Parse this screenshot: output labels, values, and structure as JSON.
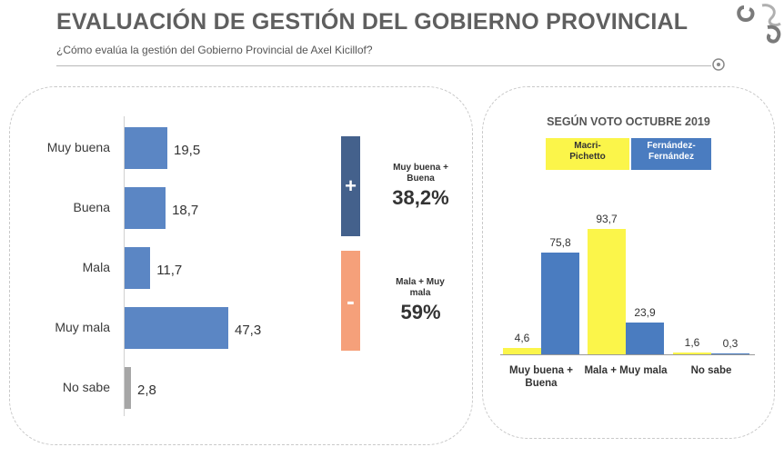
{
  "header": {
    "title": "EVALUACIÓN DE GESTIÓN DEL GOBIERNO PROVINCIAL",
    "subtitle": "¿Cómo evalúa la gestión del Gobierno Provincial de Axel Kicillof?"
  },
  "summary": {
    "positive": {
      "sign": "+",
      "label": "Muy buena + Buena",
      "value": "38,2%",
      "color": "#44618c"
    },
    "negative": {
      "sign": "-",
      "label": "Mala + Muy mala",
      "value": "59%",
      "color": "#f5a07a"
    }
  },
  "colors": {
    "main_bar": "#5b86c4",
    "no_sabe_bar": "#a6a6a6",
    "macri": "#fbf54a",
    "fernandez": "#4a7cc0"
  },
  "chart_data": [
    {
      "type": "bar",
      "orientation": "horizontal",
      "categories": [
        "Muy buena",
        "Buena",
        "Mala",
        "Muy mala",
        "No sabe"
      ],
      "values": [
        19.5,
        18.7,
        11.7,
        47.3,
        2.8
      ],
      "value_labels": [
        "19,5",
        "18,7",
        "11,7",
        "47,3",
        "2,8"
      ],
      "xlim": [
        0,
        50
      ]
    },
    {
      "type": "bar",
      "title": "SEGÚN VOTO OCTUBRE 2019",
      "categories": [
        "Muy buena + Buena",
        "Mala + Muy mala",
        "No sabe"
      ],
      "series": [
        {
          "name": "Macri-Pichetto",
          "values": [
            4.6,
            93.7,
            1.6
          ],
          "labels": [
            "4,6",
            "93,7",
            "1,6"
          ]
        },
        {
          "name": "Fernández-Fernández",
          "values": [
            75.8,
            23.9,
            0.3
          ],
          "labels": [
            "75,8",
            "23,9",
            "0,3"
          ]
        }
      ],
      "ylim": [
        0,
        100
      ],
      "legend": "top"
    }
  ]
}
